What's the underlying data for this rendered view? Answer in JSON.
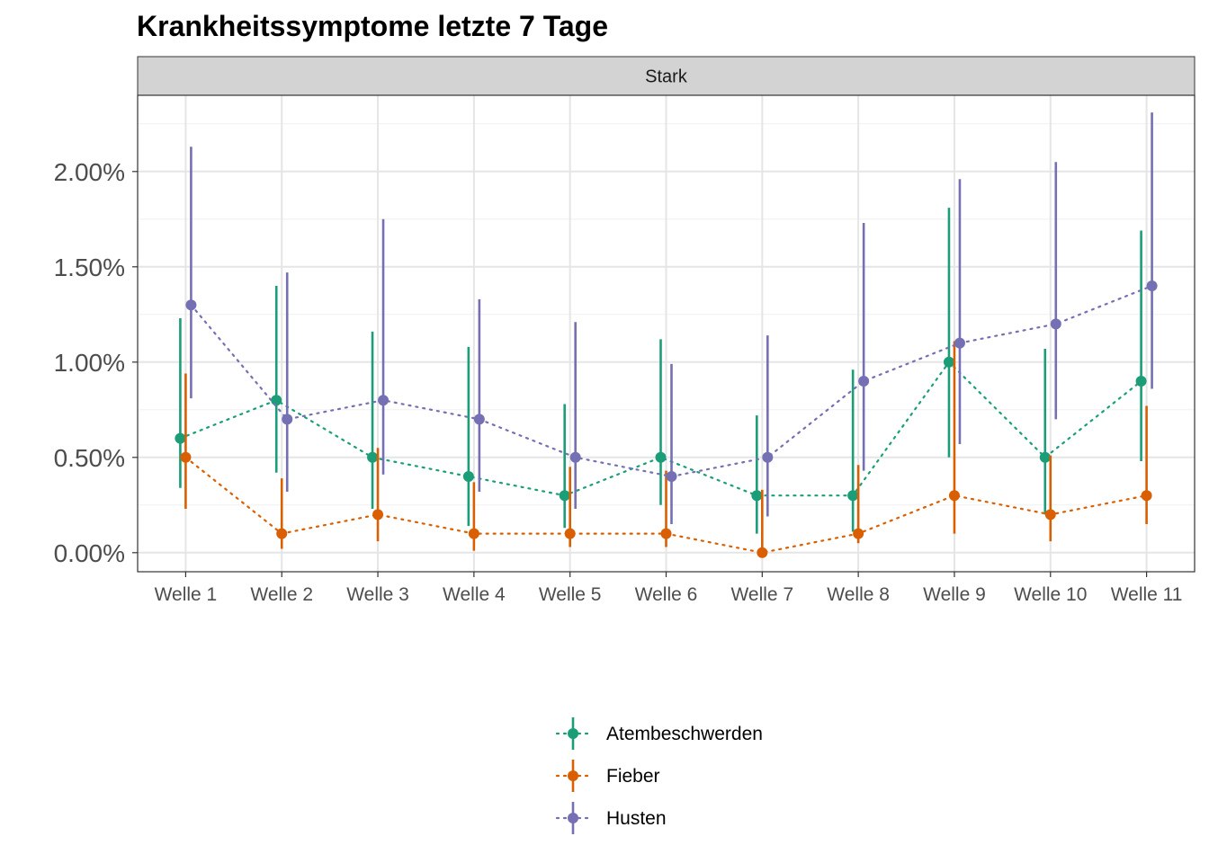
{
  "chart_data": {
    "type": "line",
    "title": "Krankheitssymptome letzte 7 Tage",
    "facet": "Stark",
    "xlabel": "",
    "ylabel": "",
    "categories": [
      "Welle 1",
      "Welle 2",
      "Welle 3",
      "Welle 4",
      "Welle 5",
      "Welle 6",
      "Welle 7",
      "Welle 8",
      "Welle 9",
      "Welle 10",
      "Welle 11"
    ],
    "y_ticks": [
      "0.00%",
      "0.50%",
      "1.00%",
      "1.50%",
      "2.00%"
    ],
    "y_tick_values": [
      0,
      0.5,
      1.0,
      1.5,
      2.0
    ],
    "ylim": [
      -0.1,
      2.4
    ],
    "y_unit": "%",
    "grid": true,
    "legend_position": "bottom",
    "line_style": "dotted",
    "series": [
      {
        "name": "Atembeschwerden",
        "color": "#1b9e77",
        "values": [
          0.6,
          0.8,
          0.5,
          0.4,
          0.3,
          0.5,
          0.3,
          0.3,
          1.0,
          0.5,
          0.9
        ],
        "lower": [
          0.34,
          0.42,
          0.23,
          0.14,
          0.13,
          0.25,
          0.1,
          0.11,
          0.5,
          0.2,
          0.48
        ],
        "upper": [
          1.23,
          1.4,
          1.16,
          1.08,
          0.78,
          1.12,
          0.72,
          0.96,
          1.81,
          1.07,
          1.69
        ]
      },
      {
        "name": "Fieber",
        "color": "#d95f02",
        "values": [
          0.5,
          0.1,
          0.2,
          0.1,
          0.1,
          0.1,
          0.0,
          0.1,
          0.3,
          0.2,
          0.3
        ],
        "lower": [
          0.23,
          0.02,
          0.06,
          0.01,
          0.03,
          0.03,
          0.0,
          0.05,
          0.1,
          0.06,
          0.15
        ],
        "upper": [
          0.94,
          0.39,
          0.55,
          0.37,
          0.45,
          0.43,
          0.33,
          0.46,
          1.11,
          0.51,
          0.77
        ]
      },
      {
        "name": "Husten",
        "color": "#7570b3",
        "values": [
          1.3,
          0.7,
          0.8,
          0.7,
          0.5,
          0.4,
          0.5,
          0.9,
          1.1,
          1.2,
          1.4
        ],
        "lower": [
          0.81,
          0.32,
          0.41,
          0.32,
          0.23,
          0.15,
          0.19,
          0.43,
          0.57,
          0.7,
          0.86
        ],
        "upper": [
          2.13,
          1.47,
          1.75,
          1.33,
          1.21,
          0.99,
          1.14,
          1.73,
          1.96,
          2.05,
          2.31
        ]
      }
    ]
  }
}
